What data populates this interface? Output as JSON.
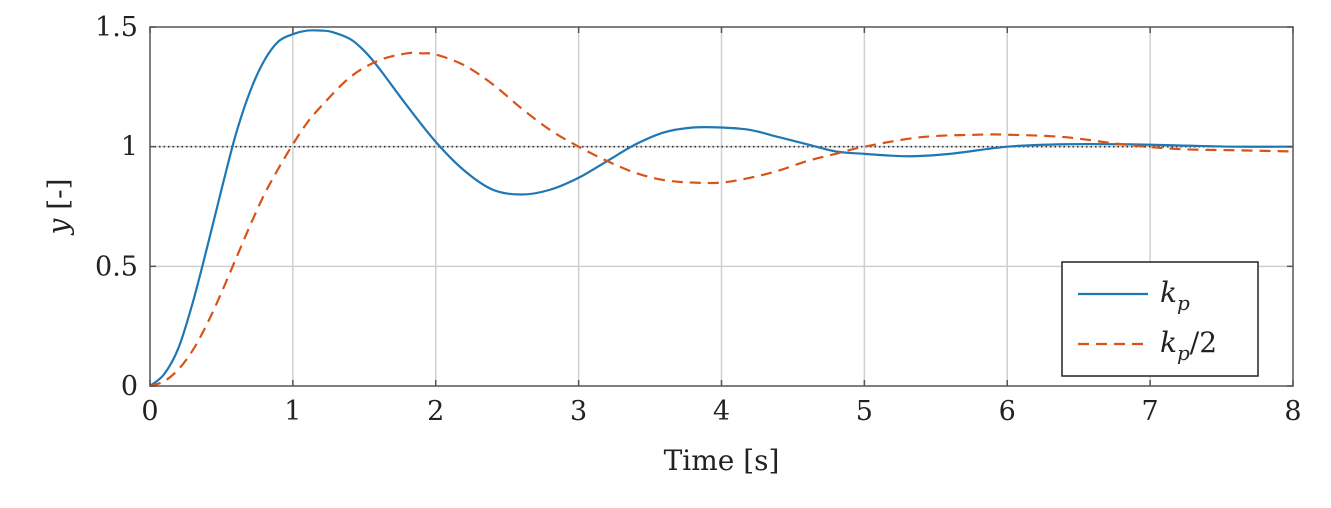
{
  "chart_data": {
    "type": "line",
    "xlabel": "Time [s]",
    "ylabel": "y [-]",
    "xlim": [
      0,
      8
    ],
    "ylim": [
      0,
      1.5
    ],
    "xticks": [
      0,
      1,
      2,
      3,
      4,
      5,
      6,
      7,
      8
    ],
    "yticks": [
      {
        "value": 0,
        "label": "0"
      },
      {
        "value": 0.5,
        "label": "0.5"
      },
      {
        "value": 1,
        "label": "1"
      },
      {
        "value": 1.5,
        "label": "1.5"
      }
    ],
    "grid": true,
    "legend_position": "bottom-right",
    "reference_line": {
      "y": 1,
      "style": "dotted",
      "color": "#333333"
    },
    "series": [
      {
        "name": "k_p",
        "legend_main": "k",
        "legend_sub": "p",
        "legend_suffix": "",
        "color": "#1f77b4",
        "style": "solid",
        "x": [
          0,
          0.1,
          0.2,
          0.3,
          0.4,
          0.5,
          0.6,
          0.7,
          0.8,
          0.9,
          1.0,
          1.1,
          1.2,
          1.27,
          1.4,
          1.5,
          1.6,
          1.8,
          2.0,
          2.2,
          2.4,
          2.6,
          2.8,
          3.0,
          3.2,
          3.4,
          3.6,
          3.8,
          4.0,
          4.2,
          4.4,
          4.6,
          4.8,
          5.0,
          5.3,
          5.6,
          6.0,
          6.4,
          6.8,
          7.2,
          7.6,
          8.0
        ],
        "y": [
          0,
          0.05,
          0.16,
          0.35,
          0.58,
          0.82,
          1.05,
          1.23,
          1.36,
          1.44,
          1.47,
          1.485,
          1.485,
          1.48,
          1.45,
          1.4,
          1.33,
          1.17,
          1.02,
          0.9,
          0.82,
          0.8,
          0.82,
          0.87,
          0.94,
          1.01,
          1.06,
          1.08,
          1.08,
          1.07,
          1.04,
          1.01,
          0.98,
          0.97,
          0.96,
          0.97,
          1.0,
          1.01,
          1.01,
          1.005,
          1.0,
          1.0
        ]
      },
      {
        "name": "k_p/2",
        "legend_main": "k",
        "legend_sub": "p",
        "legend_suffix": "/2",
        "color": "#d95319",
        "style": "dashed",
        "x": [
          0,
          0.1,
          0.2,
          0.3,
          0.4,
          0.5,
          0.6,
          0.7,
          0.8,
          0.9,
          1.0,
          1.1,
          1.2,
          1.4,
          1.6,
          1.8,
          1.9,
          2.0,
          2.2,
          2.4,
          2.6,
          2.8,
          3.0,
          3.2,
          3.4,
          3.6,
          3.8,
          4.0,
          4.2,
          4.4,
          4.6,
          4.8,
          5.0,
          5.4,
          5.8,
          6.0,
          6.4,
          6.8,
          7.2,
          7.6,
          8.0
        ],
        "y": [
          0,
          0.02,
          0.07,
          0.15,
          0.26,
          0.39,
          0.53,
          0.67,
          0.8,
          0.91,
          1.01,
          1.1,
          1.17,
          1.29,
          1.36,
          1.39,
          1.39,
          1.385,
          1.34,
          1.26,
          1.16,
          1.07,
          1.0,
          0.94,
          0.89,
          0.86,
          0.85,
          0.85,
          0.87,
          0.9,
          0.94,
          0.97,
          1.0,
          1.04,
          1.05,
          1.05,
          1.04,
          1.01,
          0.99,
          0.985,
          0.98
        ]
      }
    ]
  }
}
